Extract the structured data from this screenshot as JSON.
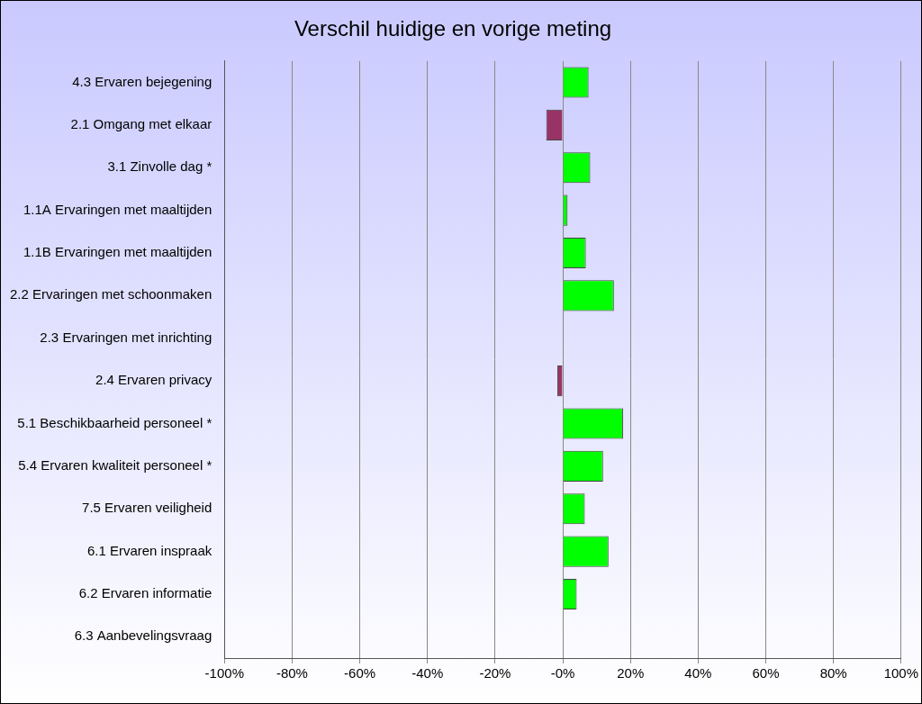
{
  "chart_data": {
    "type": "bar",
    "orientation": "horizontal",
    "title": "Verschil huidige en vorige meting",
    "categories": [
      "4.3 Ervaren bejegening",
      "2.1 Omgang met elkaar",
      "3.1 Zinvolle dag *",
      "1.1A Ervaringen met maaltijden",
      "1.1B Ervaringen met maaltijden",
      "2.2 Ervaringen met schoonmaken",
      "2.3 Ervaringen met inrichting",
      "2.4 Ervaren privacy",
      "5.1 Beschikbaarheid personeel *",
      "5.4 Ervaren kwaliteit personeel *",
      "7.5 Ervaren veiligheid",
      "6.1 Ervaren inspraak",
      "6.2 Ervaren informatie",
      "6.3 Aanbevelingsvraag"
    ],
    "values": [
      7.6,
      -4.9,
      8.1,
      1.4,
      6.8,
      15.1,
      0,
      -1.6,
      17.8,
      11.9,
      6.5,
      13.5,
      4.1,
      0
    ],
    "colors": [
      "#00ff00",
      "#993366",
      "#00ff00",
      "#00ff00",
      "#00ff00",
      "#00ff00",
      "#00ff00",
      "#993366",
      "#00ff00",
      "#00ff00",
      "#00ff00",
      "#00ff00",
      "#00ff00",
      "#00ff00"
    ],
    "xlim": [
      -100,
      100
    ],
    "xticks": [
      {
        "value": -100,
        "label": "-100%"
      },
      {
        "value": -80,
        "label": "-80%"
      },
      {
        "value": -60,
        "label": "-60%"
      },
      {
        "value": -40,
        "label": "-40%"
      },
      {
        "value": -20,
        "label": "-20%"
      },
      {
        "value": 0,
        "label": "-0%"
      },
      {
        "value": 20,
        "label": "20%"
      },
      {
        "value": 40,
        "label": "40%"
      },
      {
        "value": 60,
        "label": "60%"
      },
      {
        "value": 80,
        "label": "80%"
      },
      {
        "value": 100,
        "label": "100%"
      }
    ],
    "grid": true
  }
}
